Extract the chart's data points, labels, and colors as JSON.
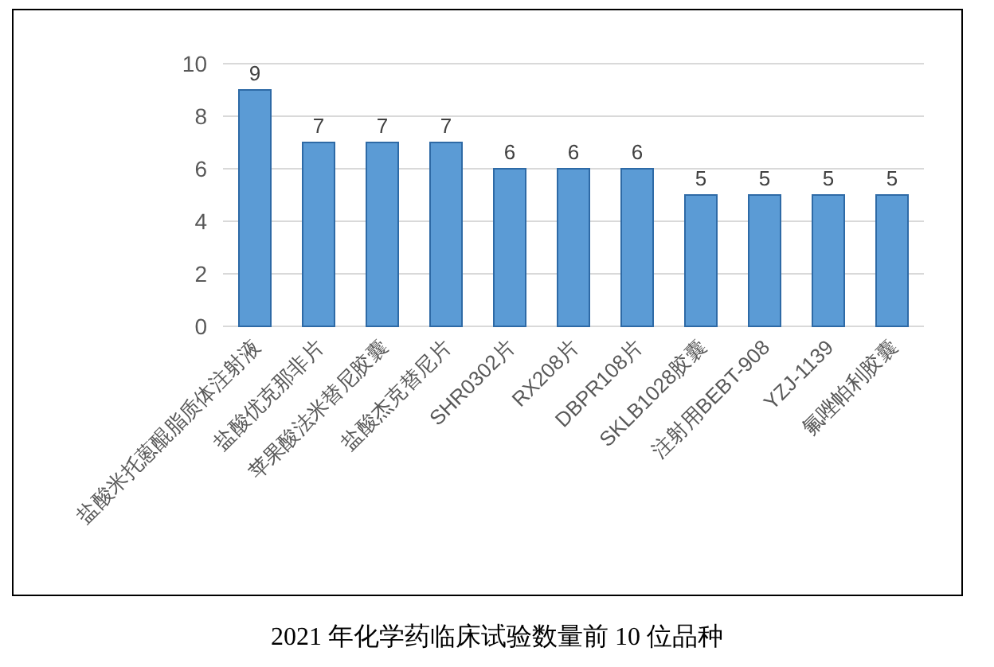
{
  "chart_data": {
    "type": "bar",
    "title": "2021 年化学药临床试验数量前 10 位品种",
    "categories": [
      "盐酸米托蒽醌脂质体注射液",
      "盐酸优克那非片",
      "苹果酸法米替尼胶囊",
      "盐酸杰克替尼片",
      "SHR0302片",
      "RX208片",
      "DBPR108片",
      "SKLB1028胶囊",
      "注射用BEBT-908",
      "YZJ-1139",
      "氟唑帕利胶囊"
    ],
    "values": [
      9,
      7,
      7,
      7,
      6,
      6,
      6,
      5,
      5,
      5,
      5
    ],
    "color": "#5b9bd5",
    "ylim": [
      0,
      10
    ],
    "yticks": [
      0,
      2,
      4,
      6,
      8,
      10
    ],
    "grid": "y",
    "data_labels": true
  }
}
